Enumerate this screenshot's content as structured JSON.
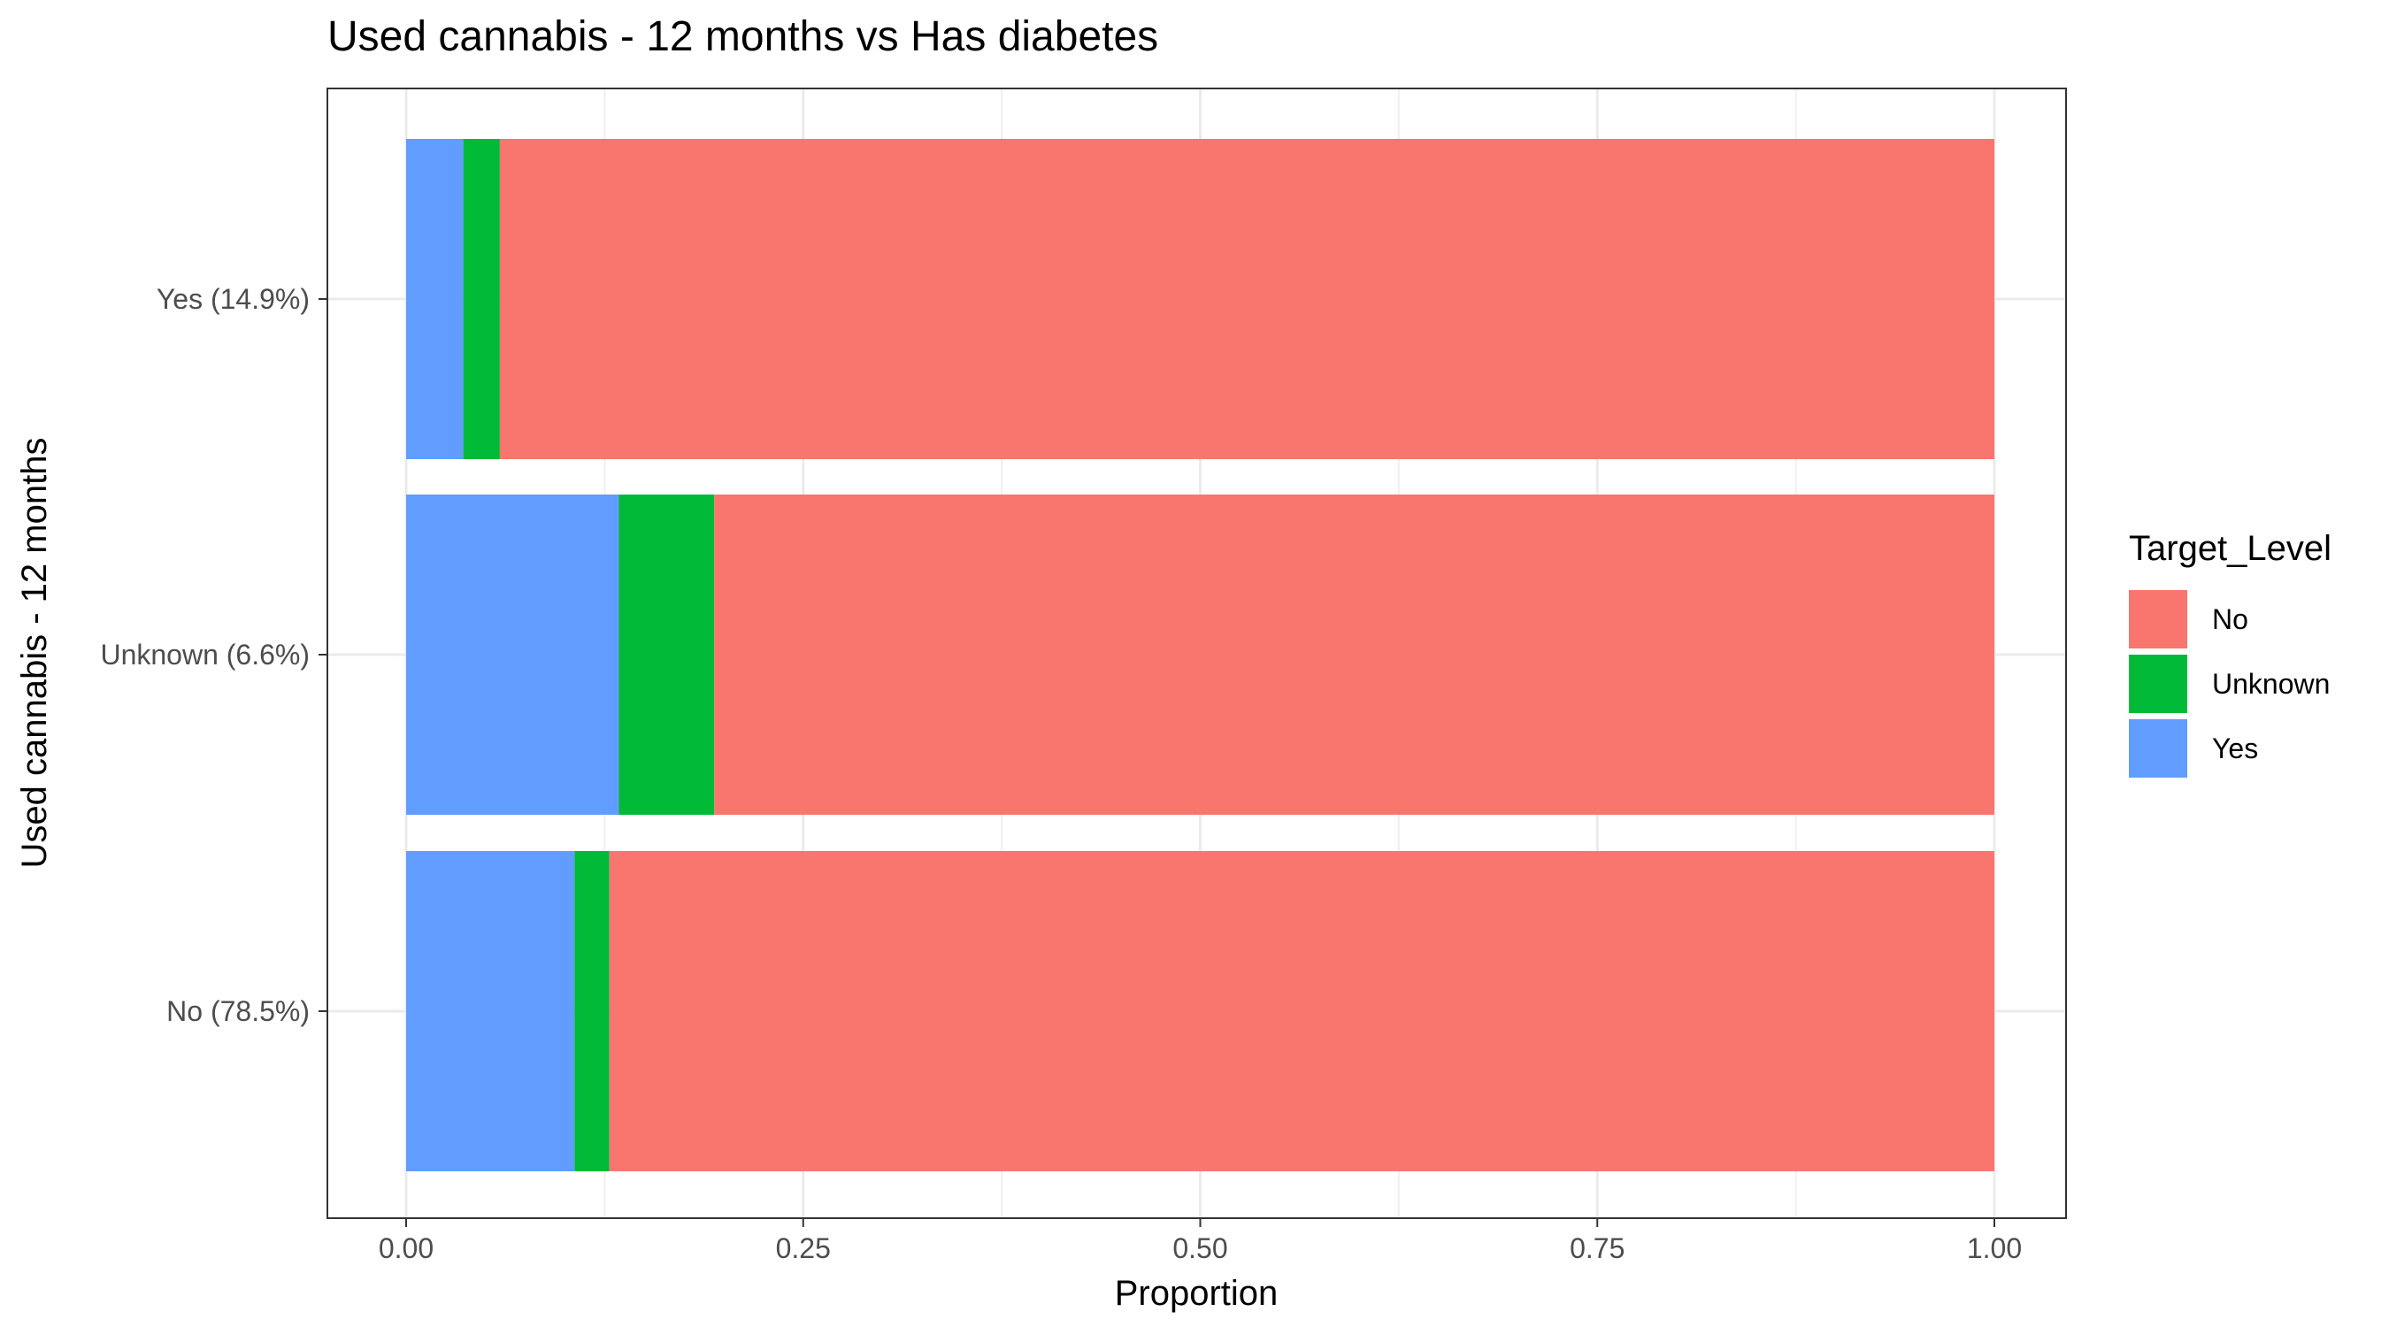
{
  "chart_data": {
    "type": "bar",
    "orientation": "horizontal",
    "stacked": true,
    "title": "Used cannabis - 12 months vs Has diabetes",
    "xlabel": "Proportion",
    "ylabel": "Used cannabis - 12 months",
    "xlim": [
      0,
      1
    ],
    "xticks": [
      0,
      0.25,
      0.5,
      0.75,
      1
    ],
    "xtick_labels": [
      "0.00",
      "0.25",
      "0.50",
      "0.75",
      "1.00"
    ],
    "categories": [
      "No (78.5%)",
      "Unknown (6.6%)",
      "Yes (14.9%)"
    ],
    "series": [
      {
        "name": "Yes",
        "color": "#619CFF",
        "values": [
          0.106,
          0.134,
          0.036
        ]
      },
      {
        "name": "Unknown",
        "color": "#00BA38",
        "values": [
          0.022,
          0.06,
          0.023
        ]
      },
      {
        "name": "No",
        "color": "#F8766D",
        "values": [
          0.872,
          0.806,
          0.941
        ]
      }
    ],
    "legend": {
      "title": "Target_Level",
      "position": "right",
      "entries": [
        {
          "label": "No",
          "color": "#F8766D"
        },
        {
          "label": "Unknown",
          "color": "#00BA38"
        },
        {
          "label": "Yes",
          "color": "#619CFF"
        }
      ]
    },
    "grid": true
  }
}
